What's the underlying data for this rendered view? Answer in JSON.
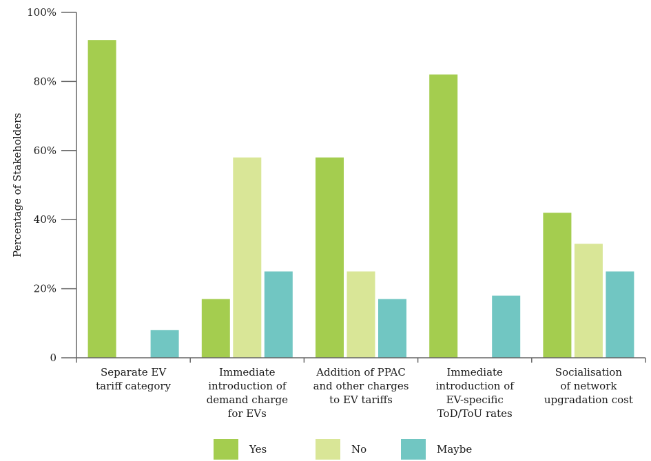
{
  "chart_data": {
    "type": "bar",
    "title": "",
    "xlabel": "",
    "ylabel": "Percentage of Stakeholders",
    "ylim": [
      0,
      100
    ],
    "yticks": [
      {
        "value": 0,
        "label": "0"
      },
      {
        "value": 20,
        "label": "20%"
      },
      {
        "value": 40,
        "label": "40%"
      },
      {
        "value": 60,
        "label": "60%"
      },
      {
        "value": 80,
        "label": "80%"
      },
      {
        "value": 100,
        "label": "100%"
      }
    ],
    "categories": [
      [
        "Separate EV",
        "tariff category"
      ],
      [
        "Immediate",
        "introduction of",
        "demand charge",
        "for EVs"
      ],
      [
        "Addition of PPAC",
        "and other charges",
        "to EV tariffs"
      ],
      [
        "Immediate",
        "introduction of",
        "EV-specific",
        "ToD/ToU rates"
      ],
      [
        "Socialisation",
        "of network",
        "upgradation cost"
      ]
    ],
    "series": [
      {
        "name": "Yes",
        "color": "#a4cd4f",
        "values": [
          92,
          17,
          58,
          82,
          42
        ]
      },
      {
        "name": "No",
        "color": "#d9e697",
        "values": [
          0,
          58,
          25,
          0,
          33
        ]
      },
      {
        "name": "Maybe",
        "color": "#71c6c2",
        "values": [
          8,
          25,
          17,
          18,
          25
        ]
      }
    ],
    "grid": false,
    "legend_position": "bottom"
  }
}
